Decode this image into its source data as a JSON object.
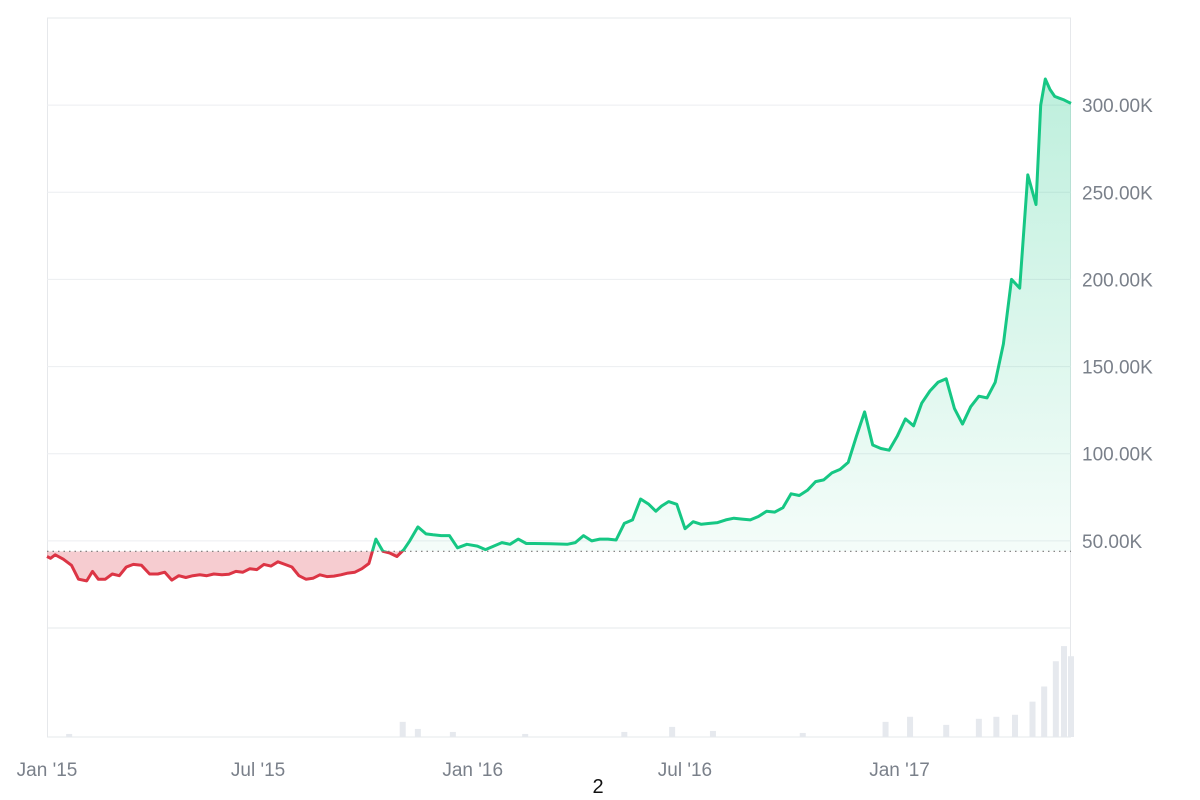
{
  "chart_data": {
    "type": "area",
    "title": "",
    "xlabel": "",
    "ylabel": "",
    "x_ticks": [
      {
        "label": "Jan '15",
        "date": "2015-01-01"
      },
      {
        "label": "Jul '15",
        "date": "2015-07-01"
      },
      {
        "label": "Jan '16",
        "date": "2016-01-01"
      },
      {
        "label": "Jul '16",
        "date": "2016-07-01"
      },
      {
        "label": "Jan '17",
        "date": "2017-01-01"
      }
    ],
    "y_ticks": [
      {
        "label": "50.00K",
        "value": 50000
      },
      {
        "label": "100.00K",
        "value": 100000
      },
      {
        "label": "150.00K",
        "value": 150000
      },
      {
        "label": "200.00K",
        "value": 200000
      },
      {
        "label": "250.00K",
        "value": 250000
      },
      {
        "label": "300.00K",
        "value": 300000
      }
    ],
    "xlim": [
      "2015-01-01",
      "2017-05-28"
    ],
    "ylim": [
      0,
      350000
    ],
    "baseline": 44000,
    "grid": true,
    "colors": {
      "below": "#dc3545",
      "above": "#16c784",
      "grid": "#eceef1",
      "baseline": "#777777",
      "volume": "#e6e9ee"
    },
    "series": [
      {
        "x": [
          "2015-01-01",
          "2015-01-04",
          "2015-01-08",
          "2015-01-15",
          "2015-01-22",
          "2015-01-28",
          "2015-02-04",
          "2015-02-09",
          "2015-02-14",
          "2015-02-20",
          "2015-02-26",
          "2015-03-04",
          "2015-03-10",
          "2015-03-16",
          "2015-03-23",
          "2015-03-30",
          "2015-04-06",
          "2015-04-12",
          "2015-04-18",
          "2015-04-24",
          "2015-04-30",
          "2015-05-06",
          "2015-05-12",
          "2015-05-18",
          "2015-05-24",
          "2015-05-31",
          "2015-06-06",
          "2015-06-12",
          "2015-06-18",
          "2015-06-24",
          "2015-06-30",
          "2015-07-06",
          "2015-07-12",
          "2015-07-18",
          "2015-07-24",
          "2015-07-30",
          "2015-08-05",
          "2015-08-11",
          "2015-08-17",
          "2015-08-23",
          "2015-08-29",
          "2015-09-04",
          "2015-09-10",
          "2015-09-16",
          "2015-09-22",
          "2015-09-28",
          "2015-10-04",
          "2015-10-10",
          "2015-10-16",
          "2015-10-22",
          "2015-10-28",
          "2015-11-03",
          "2015-11-08",
          "2015-11-15",
          "2015-11-22",
          "2015-11-28",
          "2015-12-05",
          "2015-12-12",
          "2015-12-19",
          "2015-12-27",
          "2016-01-05",
          "2016-01-12",
          "2016-01-19",
          "2016-01-26",
          "2016-02-02",
          "2016-02-09",
          "2016-02-16",
          "2016-02-23",
          "2016-03-01",
          "2016-03-08",
          "2016-03-15",
          "2016-03-22",
          "2016-03-29",
          "2016-04-05",
          "2016-04-12",
          "2016-04-19",
          "2016-04-26",
          "2016-05-03",
          "2016-05-10",
          "2016-05-17",
          "2016-05-24",
          "2016-05-31",
          "2016-06-06",
          "2016-06-11",
          "2016-06-17",
          "2016-06-24",
          "2016-07-01",
          "2016-07-08",
          "2016-07-15",
          "2016-07-22",
          "2016-07-29",
          "2016-08-05",
          "2016-08-12",
          "2016-08-19",
          "2016-08-26",
          "2016-09-02",
          "2016-09-09",
          "2016-09-16",
          "2016-09-23",
          "2016-09-30",
          "2016-10-07",
          "2016-10-14",
          "2016-10-21",
          "2016-10-28",
          "2016-11-04",
          "2016-11-11",
          "2016-11-18",
          "2016-11-25",
          "2016-12-02",
          "2016-12-09",
          "2016-12-16",
          "2016-12-23",
          "2016-12-30",
          "2017-01-06",
          "2017-01-13",
          "2017-01-20",
          "2017-01-27",
          "2017-02-03",
          "2017-02-10",
          "2017-02-17",
          "2017-02-24",
          "2017-03-03",
          "2017-03-10",
          "2017-03-17",
          "2017-03-24",
          "2017-03-31",
          "2017-04-07",
          "2017-04-14",
          "2017-04-21",
          "2017-04-28",
          "2017-05-02",
          "2017-05-06",
          "2017-05-10",
          "2017-05-14",
          "2017-05-18",
          "2017-05-22",
          "2017-05-25",
          "2017-05-28"
        ],
        "values": [
          41000,
          40000,
          42000,
          39500,
          36000,
          28000,
          27000,
          32500,
          28000,
          28000,
          31000,
          30000,
          35000,
          36500,
          36000,
          31000,
          31000,
          32000,
          27500,
          30000,
          29000,
          30000,
          30500,
          30000,
          31000,
          30500,
          30800,
          32500,
          32000,
          34000,
          33500,
          36500,
          35500,
          38000,
          36500,
          35000,
          30000,
          28000,
          28500,
          30500,
          29500,
          29800,
          30500,
          31500,
          32000,
          34000,
          37000,
          51000,
          44000,
          43000,
          41000,
          45000,
          50000,
          58000,
          54000,
          53500,
          53000,
          53000,
          46000,
          48000,
          47000,
          45000,
          47000,
          49000,
          48000,
          51000,
          48500,
          48500,
          48400,
          48300,
          48200,
          48000,
          49000,
          53000,
          50000,
          51000,
          51000,
          50500,
          60000,
          62000,
          74000,
          71000,
          67000,
          70000,
          72500,
          71000,
          57000,
          61000,
          59500,
          60000,
          60500,
          62000,
          63000,
          62500,
          62000,
          64000,
          67000,
          66500,
          69000,
          77000,
          76000,
          79000,
          84000,
          85000,
          89000,
          91000,
          95000,
          110000,
          124000,
          105000,
          103000,
          102000,
          110000,
          120000,
          116000,
          129000,
          136000,
          141000,
          143000,
          126000,
          117000,
          127000,
          133000,
          132000,
          141000,
          163000,
          200000,
          195000,
          260000,
          243000,
          300000,
          315000,
          309000,
          305000,
          304000,
          303000,
          302000,
          301000
        ]
      }
    ],
    "volume": {
      "x": [
        "2015-01-20",
        "2015-11-02",
        "2015-11-15",
        "2015-12-15",
        "2016-02-15",
        "2016-05-10",
        "2016-06-20",
        "2016-07-25",
        "2016-10-10",
        "2016-12-20",
        "2017-01-10",
        "2017-02-10",
        "2017-03-10",
        "2017-03-25",
        "2017-04-10",
        "2017-04-25",
        "2017-05-05",
        "2017-05-15",
        "2017-05-22",
        "2017-05-28"
      ],
      "values": [
        0.03,
        0.15,
        0.08,
        0.05,
        0.03,
        0.05,
        0.1,
        0.06,
        0.04,
        0.15,
        0.2,
        0.12,
        0.18,
        0.2,
        0.22,
        0.35,
        0.5,
        0.75,
        0.9,
        0.8
      ]
    }
  },
  "page_number": "2"
}
